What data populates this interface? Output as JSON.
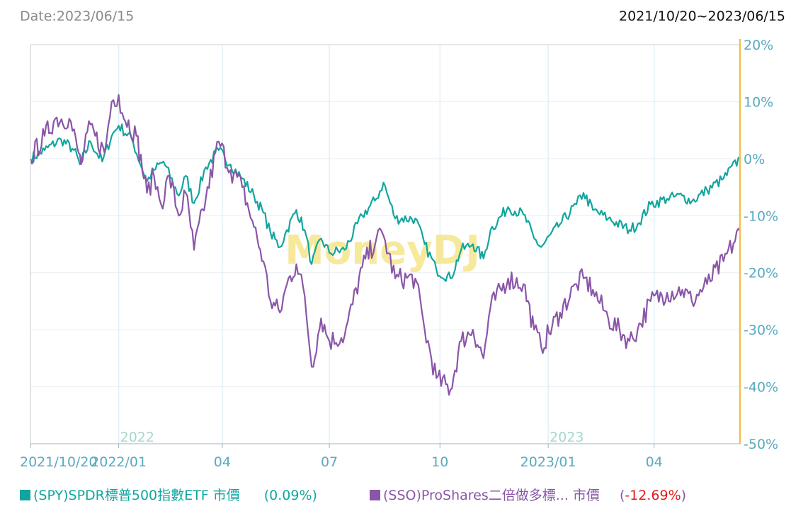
{
  "header": {
    "date_label": "Date:2023/06/15",
    "range_label": "2021/10/20~2023/06/15"
  },
  "watermark": "MoneyDJ",
  "chart_data": {
    "type": "line",
    "x_range": [
      "2021-10-20",
      "2023-06-15"
    ],
    "y_ticks": [
      "20%",
      "10%",
      "0%",
      "-10%",
      "-20%",
      "-30%",
      "-40%",
      "-50%"
    ],
    "ylim": [
      -50,
      20
    ],
    "x_ticks": [
      {
        "date": "2021-10-20",
        "label": "2021/10/20"
      },
      {
        "date": "2022-01-03",
        "label": "2022/01"
      },
      {
        "date": "2022-04-01",
        "label": "04"
      },
      {
        "date": "2022-07-01",
        "label": "07"
      },
      {
        "date": "2022-10-03",
        "label": "10"
      },
      {
        "date": "2023-01-03",
        "label": "2023/01"
      },
      {
        "date": "2023-04-03",
        "label": "04"
      }
    ],
    "year_labels": [
      {
        "date": "2022-01-03",
        "label": "2022"
      },
      {
        "date": "2023-01-03",
        "label": "2023"
      }
    ],
    "grid": true,
    "series": [
      {
        "name": "(SPY)SPDR標普500指數ETF 市價",
        "change": "(0.09%)",
        "color": "#12a59f",
        "change_color": "#12a59f",
        "points": [
          [
            "2021-10-20",
            0
          ],
          [
            "2021-11-01",
            1.5
          ],
          [
            "2021-11-15",
            3.4
          ],
          [
            "2021-11-26",
            1.5
          ],
          [
            "2021-12-01",
            -1.0
          ],
          [
            "2021-12-10",
            3.0
          ],
          [
            "2021-12-20",
            -0.5
          ],
          [
            "2021-12-28",
            4.0
          ],
          [
            "2022-01-03",
            5.8
          ],
          [
            "2022-01-14",
            3.5
          ],
          [
            "2022-01-27",
            -4.0
          ],
          [
            "2022-02-02",
            -2.0
          ],
          [
            "2022-02-10",
            -0.5
          ],
          [
            "2022-02-23",
            -6.5
          ],
          [
            "2022-03-01",
            -3.0
          ],
          [
            "2022-03-08",
            -7.8
          ],
          [
            "2022-03-18",
            -1.5
          ],
          [
            "2022-03-29",
            1.5
          ],
          [
            "2022-04-08",
            -1.0
          ],
          [
            "2022-04-18",
            -3.5
          ],
          [
            "2022-04-28",
            -6.5
          ],
          [
            "2022-05-06",
            -9.5
          ],
          [
            "2022-05-12",
            -13.0
          ],
          [
            "2022-05-20",
            -15.5
          ],
          [
            "2022-05-26",
            -12.5
          ],
          [
            "2022-06-03",
            -9.0
          ],
          [
            "2022-06-10",
            -12.5
          ],
          [
            "2022-06-16",
            -18.5
          ],
          [
            "2022-06-24",
            -14.0
          ],
          [
            "2022-07-01",
            -16.5
          ],
          [
            "2022-07-14",
            -16.0
          ],
          [
            "2022-07-29",
            -10.0
          ],
          [
            "2022-08-10",
            -7.0
          ],
          [
            "2022-08-16",
            -4.2
          ],
          [
            "2022-08-26",
            -10.5
          ],
          [
            "2022-09-12",
            -10.5
          ],
          [
            "2022-09-20",
            -15.0
          ],
          [
            "2022-09-30",
            -19.5
          ],
          [
            "2022-10-12",
            -21.0
          ],
          [
            "2022-10-21",
            -16.0
          ],
          [
            "2022-10-31",
            -15.0
          ],
          [
            "2022-11-09",
            -17.5
          ],
          [
            "2022-11-15",
            -12.5
          ],
          [
            "2022-11-30",
            -8.5
          ],
          [
            "2022-12-13",
            -9.8
          ],
          [
            "2022-12-22",
            -14.0
          ],
          [
            "2022-12-28",
            -15.5
          ],
          [
            "2023-01-13",
            -11.5
          ],
          [
            "2023-01-27",
            -8.0
          ],
          [
            "2023-02-02",
            -6.0
          ],
          [
            "2023-02-10",
            -9.0
          ],
          [
            "2023-02-23",
            -10.5
          ],
          [
            "2023-03-13",
            -12.5
          ],
          [
            "2023-03-20",
            -11.5
          ],
          [
            "2023-03-31",
            -8.0
          ],
          [
            "2023-04-14",
            -7.0
          ],
          [
            "2023-04-27",
            -6.5
          ],
          [
            "2023-05-05",
            -7.5
          ],
          [
            "2023-05-18",
            -5.5
          ],
          [
            "2023-06-01",
            -3.5
          ],
          [
            "2023-06-15",
            0.09
          ]
        ]
      },
      {
        "name": "(SSO)ProShares二倍做多標... 市價",
        "change": "-12.69%",
        "color": "#8a56a8",
        "change_color": "#e31a1a",
        "points": [
          [
            "2021-10-20",
            0
          ],
          [
            "2021-11-01",
            4.0
          ],
          [
            "2021-11-10",
            7.0
          ],
          [
            "2021-11-22",
            7.0
          ],
          [
            "2021-11-30",
            1.0
          ],
          [
            "2021-12-02",
            -1.0
          ],
          [
            "2021-12-10",
            6.0
          ],
          [
            "2021-12-14",
            4.0
          ],
          [
            "2021-12-22",
            1.0
          ],
          [
            "2021-12-28",
            10.0
          ],
          [
            "2022-01-03",
            11.2
          ],
          [
            "2022-01-06",
            8.0
          ],
          [
            "2022-01-18",
            4.0
          ],
          [
            "2022-01-27",
            -6.0
          ],
          [
            "2022-02-02",
            -3.0
          ],
          [
            "2022-02-08",
            -8.0
          ],
          [
            "2022-02-15",
            -3.0
          ],
          [
            "2022-02-23",
            -10.0
          ],
          [
            "2022-03-01",
            -6.0
          ],
          [
            "2022-03-08",
            -16.0
          ],
          [
            "2022-03-18",
            -7.0
          ],
          [
            "2022-03-29",
            3.0
          ],
          [
            "2022-04-08",
            -2.0
          ],
          [
            "2022-04-18",
            -5.0
          ],
          [
            "2022-04-28",
            -12.0
          ],
          [
            "2022-05-06",
            -18.0
          ],
          [
            "2022-05-12",
            -25.0
          ],
          [
            "2022-05-20",
            -27.0
          ],
          [
            "2022-05-26",
            -22.0
          ],
          [
            "2022-06-03",
            -18.5
          ],
          [
            "2022-06-10",
            -24.0
          ],
          [
            "2022-06-16",
            -36.5
          ],
          [
            "2022-06-24",
            -28.0
          ],
          [
            "2022-07-01",
            -32.0
          ],
          [
            "2022-07-14",
            -31.0
          ],
          [
            "2022-07-29",
            -19.0
          ],
          [
            "2022-08-10",
            -14.0
          ],
          [
            "2022-08-16",
            -13.5
          ],
          [
            "2022-08-26",
            -21.0
          ],
          [
            "2022-09-12",
            -21.0
          ],
          [
            "2022-09-20",
            -30.0
          ],
          [
            "2022-09-30",
            -38.5
          ],
          [
            "2022-10-12",
            -40.5
          ],
          [
            "2022-10-21",
            -32.0
          ],
          [
            "2022-10-31",
            -30.0
          ],
          [
            "2022-11-09",
            -35.0
          ],
          [
            "2022-11-15",
            -26.0
          ],
          [
            "2022-11-30",
            -21.0
          ],
          [
            "2022-12-13",
            -22.0
          ],
          [
            "2022-12-22",
            -30.0
          ],
          [
            "2022-12-28",
            -33.0
          ],
          [
            "2023-01-13",
            -27.0
          ],
          [
            "2023-01-27",
            -22.0
          ],
          [
            "2023-02-02",
            -21.0
          ],
          [
            "2023-02-10",
            -23.0
          ],
          [
            "2023-02-23",
            -28.0
          ],
          [
            "2023-03-13",
            -32.0
          ],
          [
            "2023-03-20",
            -30.0
          ],
          [
            "2023-03-31",
            -25.0
          ],
          [
            "2023-04-14",
            -23.5
          ],
          [
            "2023-04-27",
            -23.0
          ],
          [
            "2023-05-05",
            -25.0
          ],
          [
            "2023-05-18",
            -22.0
          ],
          [
            "2023-06-01",
            -18.0
          ],
          [
            "2023-06-15",
            -12.69
          ]
        ]
      }
    ]
  }
}
